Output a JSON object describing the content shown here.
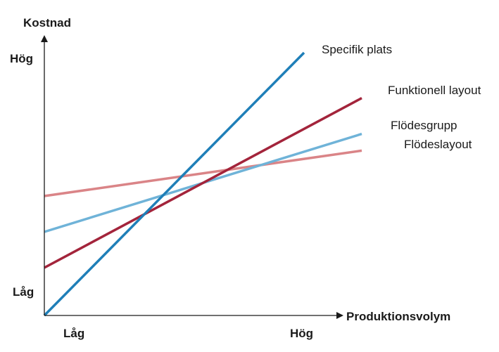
{
  "chart_data": {
    "type": "line",
    "title": "",
    "xlabel": "Produktionsvolym",
    "ylabel": "Kostnad",
    "x_ticks": [
      {
        "label": "Låg",
        "value": 0.1
      },
      {
        "label": "Hög",
        "value": 0.88
      }
    ],
    "y_ticks": [
      {
        "label": "Låg",
        "value": 0.1
      },
      {
        "label": "Hög",
        "value": 1.0
      }
    ],
    "xlim": [
      0,
      1.05
    ],
    "ylim": [
      0,
      1.1
    ],
    "grid": false,
    "legend": "none",
    "series": [
      {
        "name": "Specifik plats",
        "color": "#1f7fb8",
        "x": [
          0,
          0.9
        ],
        "y": [
          0,
          1.1
        ]
      },
      {
        "name": "Funktionell layout",
        "color": "#a3243b",
        "x": [
          0,
          1.1
        ],
        "y": [
          0.2,
          0.91
        ]
      },
      {
        "name": "Flödesgrupp",
        "color": "#6fb3d8",
        "x": [
          0,
          1.1
        ],
        "y": [
          0.35,
          0.76
        ]
      },
      {
        "name": "Flödeslayout",
        "color": "#da8487",
        "x": [
          0,
          1.1
        ],
        "y": [
          0.5,
          0.69
        ]
      }
    ]
  }
}
